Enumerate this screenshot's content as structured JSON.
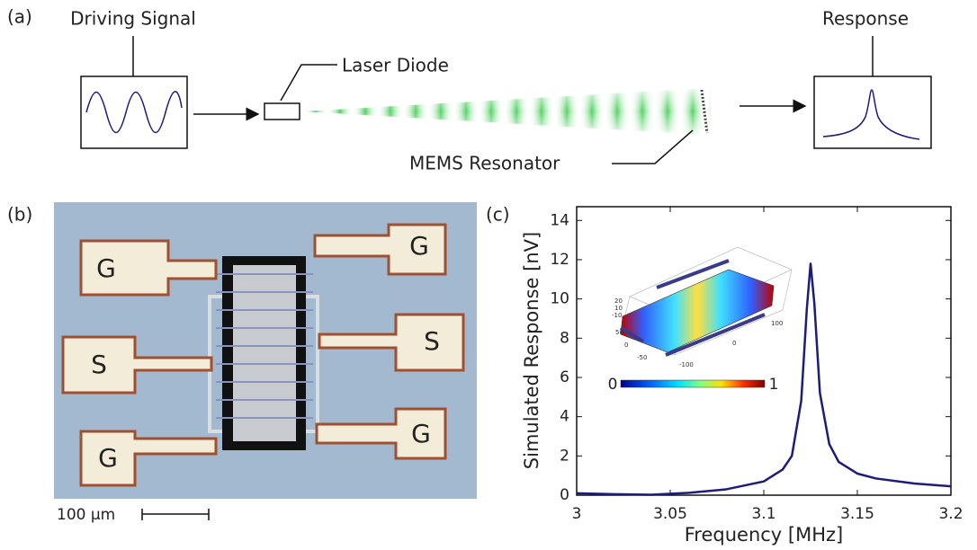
{
  "panel_a": {
    "label": "(a)",
    "driving_signal": "Driving Signal",
    "laser_diode": "Laser Diode",
    "mems_resonator": "MEMS Resonator",
    "response": "Response"
  },
  "panel_b": {
    "label": "(b)",
    "pads": [
      "G",
      "G",
      "S",
      "S",
      "G",
      "G"
    ],
    "scale_bar": "100 μm"
  },
  "chart_data": {
    "type": "line",
    "panel_label": "(c)",
    "xlabel": "Frequency [MHz]",
    "ylabel": "Simulated Response [nV]",
    "x": [
      3.0,
      3.02,
      3.04,
      3.06,
      3.08,
      3.1,
      3.11,
      3.115,
      3.12,
      3.123,
      3.125,
      3.127,
      3.13,
      3.135,
      3.14,
      3.15,
      3.16,
      3.18,
      3.2
    ],
    "values": [
      0.1,
      0.05,
      0.02,
      0.12,
      0.3,
      0.7,
      1.3,
      2.0,
      4.8,
      9.5,
      11.8,
      9.8,
      5.2,
      2.6,
      1.7,
      1.1,
      0.85,
      0.6,
      0.45
    ],
    "color": "#1c1c7a",
    "xlim": [
      3,
      3.2
    ],
    "ylim": [
      0,
      14.7
    ],
    "xticks": [
      3,
      3.05,
      3.1,
      3.15,
      3.2
    ],
    "yticks": [
      0,
      2,
      4,
      6,
      8,
      10,
      12,
      14
    ],
    "inset": {
      "axis_labels": [
        "20",
        "10",
        "-10",
        "50",
        "0",
        "-50",
        "-100",
        "0",
        "100"
      ],
      "colorbar_labels": [
        "0",
        "1"
      ]
    }
  }
}
